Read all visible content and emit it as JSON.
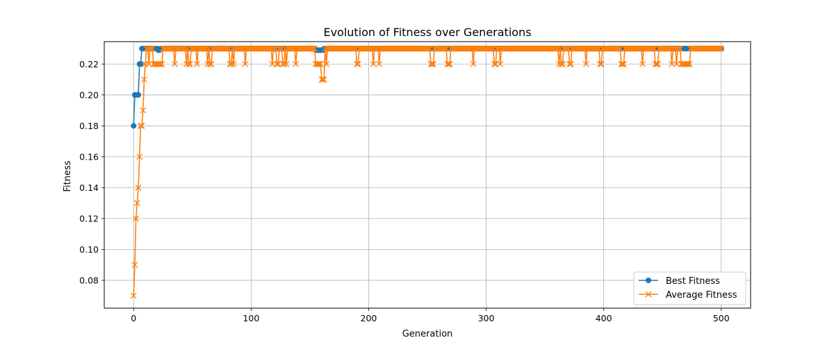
{
  "chart_data": {
    "type": "line",
    "title": "Evolution of Fitness over Generations",
    "xlabel": "Generation",
    "ylabel": "Fitness",
    "xlim": [
      -25,
      525
    ],
    "ylim": [
      0.062,
      0.2345
    ],
    "xticks": [
      0,
      100,
      200,
      300,
      400,
      500
    ],
    "yticks": [
      0.08,
      0.1,
      0.12,
      0.14,
      0.16,
      0.18,
      0.2,
      0.22
    ],
    "grid": true,
    "legend_position": "bottom-right",
    "x_range": [
      0,
      500
    ],
    "series": [
      {
        "name": "Best Fitness",
        "color": "#1f77b4",
        "marker": "circle",
        "initial": [
          [
            0,
            0.18
          ],
          [
            1,
            0.2
          ],
          [
            2,
            0.2
          ],
          [
            3,
            0.2
          ],
          [
            4,
            0.2
          ],
          [
            5,
            0.22
          ],
          [
            6,
            0.22
          ],
          [
            7,
            0.23
          ]
        ],
        "default": 0.23,
        "dips": [
          [
            21,
            0.229
          ],
          [
            22,
            0.229
          ],
          [
            155,
            0.229
          ],
          [
            156,
            0.229
          ],
          [
            157,
            0.229
          ],
          [
            158,
            0.229
          ],
          [
            159,
            0.229
          ],
          [
            160,
            0.229
          ],
          [
            161,
            0.229
          ]
        ]
      },
      {
        "name": "Average Fitness",
        "color": "#ff7f0e",
        "marker": "x",
        "initial": [
          [
            0,
            0.07
          ],
          [
            1,
            0.09
          ],
          [
            2,
            0.12
          ],
          [
            3,
            0.13
          ],
          [
            4,
            0.14
          ],
          [
            5,
            0.16
          ],
          [
            6,
            0.18
          ],
          [
            7,
            0.18
          ],
          [
            8,
            0.19
          ],
          [
            9,
            0.21
          ],
          [
            10,
            0.22
          ]
        ],
        "default": 0.23,
        "dips": [
          [
            13,
            0.22
          ],
          [
            17,
            0.22
          ],
          [
            18,
            0.22
          ],
          [
            19,
            0.22
          ],
          [
            20,
            0.22
          ],
          [
            21,
            0.22
          ],
          [
            22,
            0.22
          ],
          [
            23,
            0.22
          ],
          [
            24,
            0.22
          ],
          [
            35,
            0.22
          ],
          [
            45,
            0.22
          ],
          [
            47,
            0.22
          ],
          [
            48,
            0.22
          ],
          [
            54,
            0.22
          ],
          [
            63,
            0.22
          ],
          [
            65,
            0.22
          ],
          [
            66,
            0.22
          ],
          [
            82,
            0.22
          ],
          [
            83,
            0.22
          ],
          [
            85,
            0.22
          ],
          [
            95,
            0.22
          ],
          [
            118,
            0.22
          ],
          [
            122,
            0.22
          ],
          [
            123,
            0.22
          ],
          [
            127,
            0.22
          ],
          [
            128,
            0.22
          ],
          [
            130,
            0.22
          ],
          [
            138,
            0.22
          ],
          [
            155,
            0.22
          ],
          [
            156,
            0.22
          ],
          [
            157,
            0.22
          ],
          [
            158,
            0.22
          ],
          [
            159,
            0.22
          ],
          [
            160,
            0.21
          ],
          [
            161,
            0.21
          ],
          [
            162,
            0.21
          ],
          [
            164,
            0.22
          ],
          [
            190,
            0.22
          ],
          [
            191,
            0.22
          ],
          [
            204,
            0.22
          ],
          [
            209,
            0.22
          ],
          [
            253,
            0.22
          ],
          [
            254,
            0.22
          ],
          [
            255,
            0.22
          ],
          [
            267,
            0.22
          ],
          [
            268,
            0.22
          ],
          [
            269,
            0.22
          ],
          [
            289,
            0.22
          ],
          [
            307,
            0.22
          ],
          [
            308,
            0.22
          ],
          [
            312,
            0.22
          ],
          [
            362,
            0.22
          ],
          [
            364,
            0.22
          ],
          [
            365,
            0.22
          ],
          [
            371,
            0.22
          ],
          [
            372,
            0.22
          ],
          [
            385,
            0.22
          ],
          [
            397,
            0.22
          ],
          [
            398,
            0.22
          ],
          [
            415,
            0.22
          ],
          [
            416,
            0.22
          ],
          [
            417,
            0.22
          ],
          [
            433,
            0.22
          ],
          [
            444,
            0.22
          ],
          [
            445,
            0.22
          ],
          [
            446,
            0.22
          ],
          [
            458,
            0.22
          ],
          [
            462,
            0.22
          ],
          [
            466,
            0.22
          ],
          [
            467,
            0.22
          ],
          [
            468,
            0.22
          ],
          [
            469,
            0.22
          ],
          [
            470,
            0.22
          ],
          [
            471,
            0.22
          ],
          [
            472,
            0.22
          ],
          [
            473,
            0.22
          ]
        ]
      }
    ]
  }
}
